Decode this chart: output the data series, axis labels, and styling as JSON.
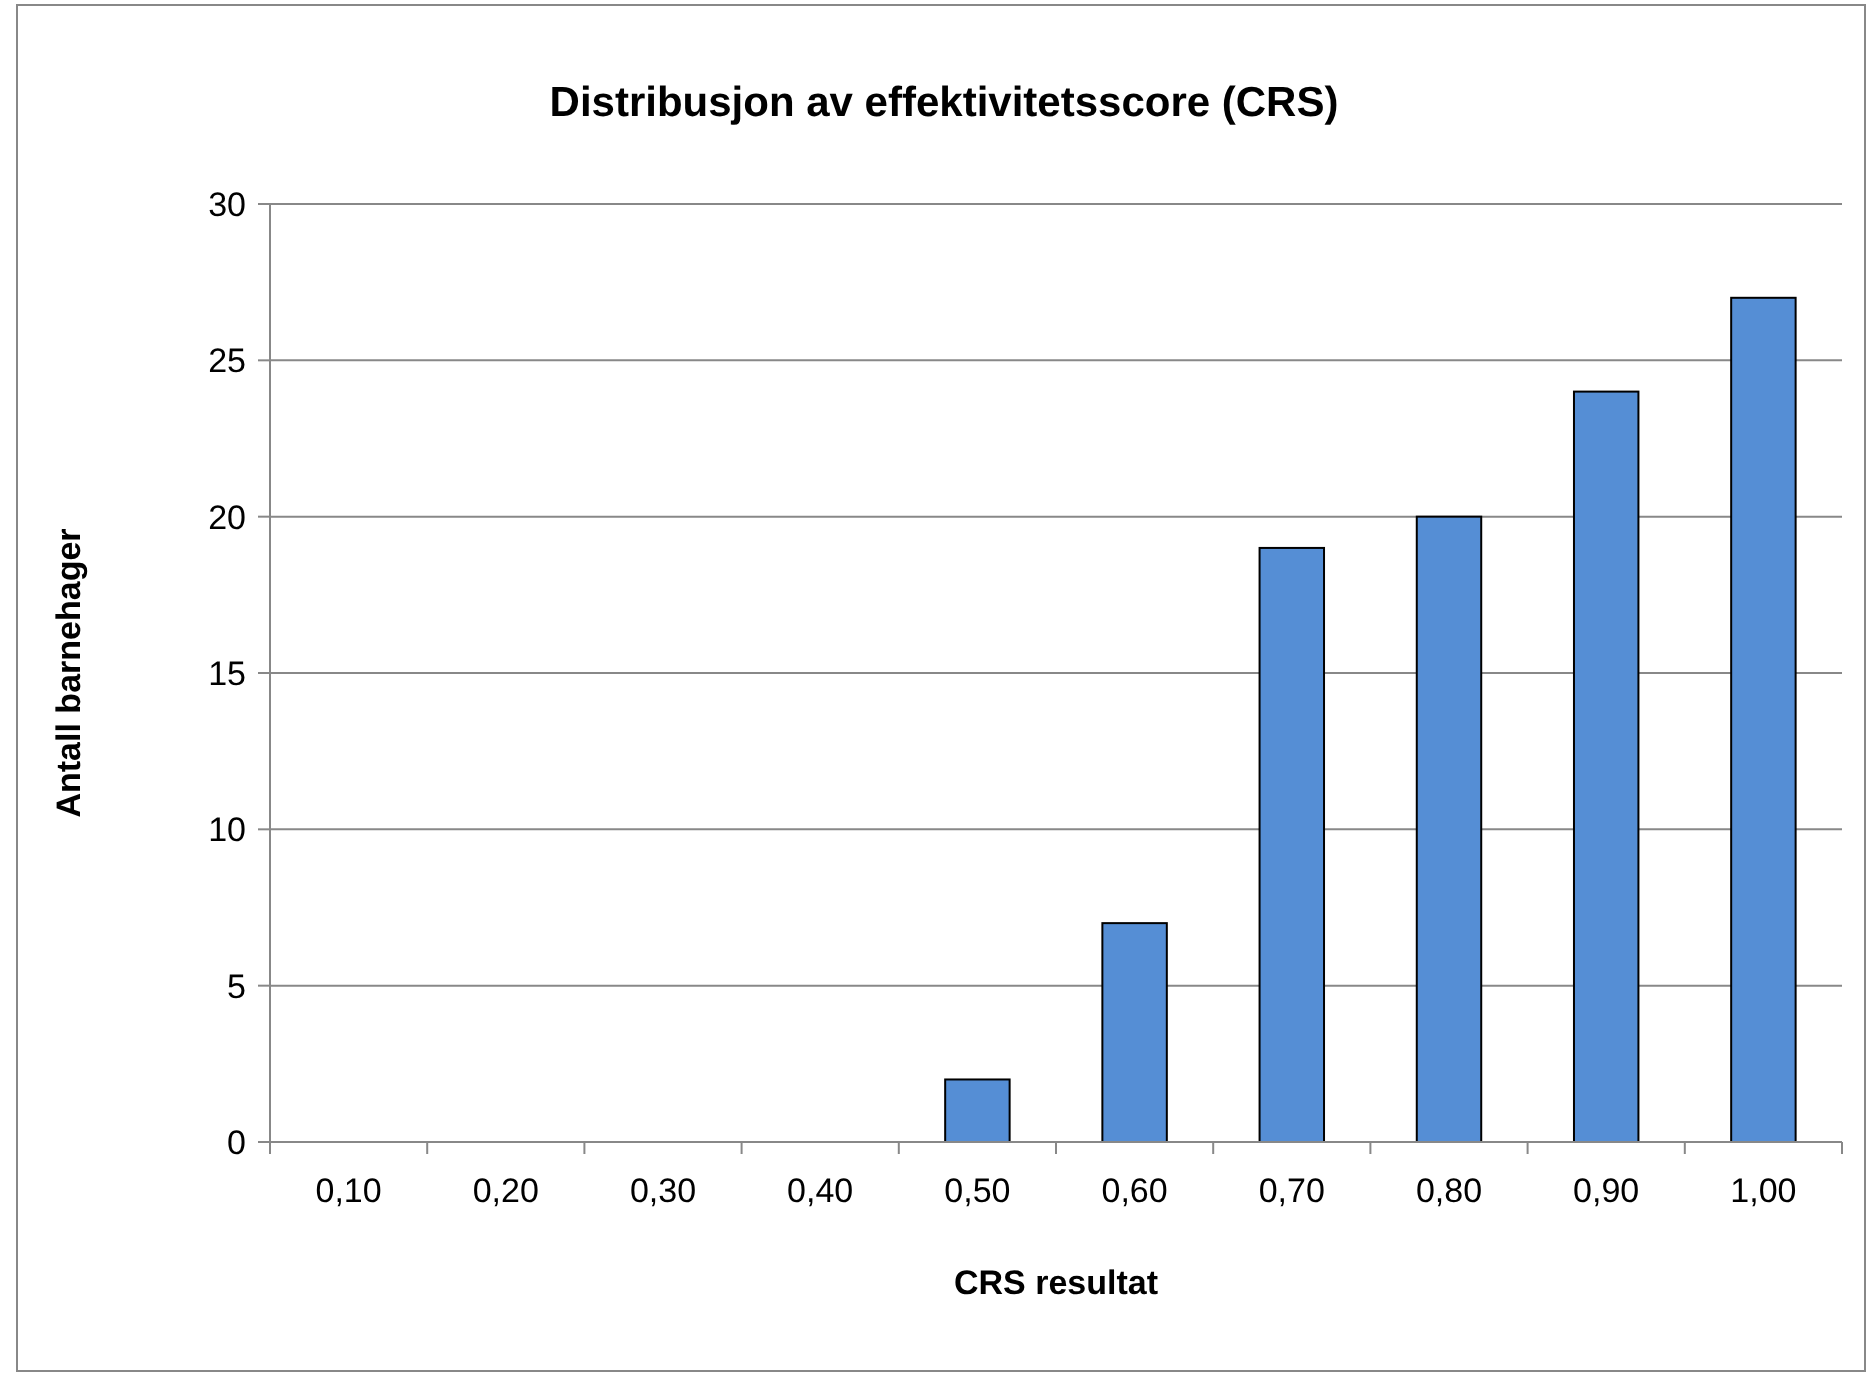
{
  "chart_data": {
    "type": "bar",
    "title": "Distribusjon av effektivitetsscore (CRS)",
    "xlabel": "CRS resultat",
    "ylabel": "Antall barnehager",
    "categories": [
      "0,10",
      "0,20",
      "0,30",
      "0,40",
      "0,50",
      "0,60",
      "0,70",
      "0,80",
      "0,90",
      "1,00"
    ],
    "values": [
      0,
      0,
      0,
      0,
      2,
      7,
      19,
      20,
      24,
      27
    ],
    "color": "#558ed5",
    "ylim": [
      0,
      30
    ],
    "yticks": [
      0,
      5,
      10,
      15,
      20,
      25,
      30
    ],
    "grid": "y"
  }
}
